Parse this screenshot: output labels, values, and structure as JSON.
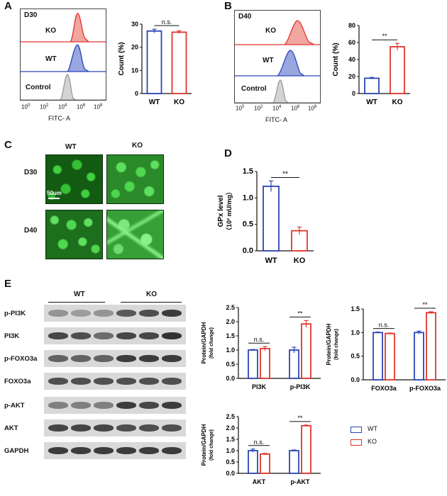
{
  "panels": {
    "A": {
      "letter": "A",
      "day": "D30",
      "tracks": [
        "KO",
        "WT",
        "Control"
      ],
      "x_axis_label": "FITC- A",
      "log_ticks": [
        "10",
        "10",
        "10",
        "10",
        "10"
      ],
      "log_exps": [
        "0",
        "2",
        "4",
        "6",
        "8"
      ]
    },
    "B": {
      "letter": "B",
      "day": "D40",
      "tracks": [
        "KO",
        "WT",
        "Control"
      ],
      "x_axis_label": "FITC- A",
      "log_ticks": [
        "10",
        "10",
        "10",
        "10",
        "10"
      ],
      "log_exps": [
        "0",
        "2",
        "4",
        "6",
        "8"
      ]
    },
    "C": {
      "letter": "C",
      "columns": [
        "WT",
        "KO"
      ],
      "rows": [
        "D30",
        "D40"
      ],
      "scale_bar": "50um"
    },
    "D": {
      "letter": "D"
    },
    "E": {
      "letter": "E",
      "groups": [
        "WT",
        "KO"
      ],
      "blots": [
        "p-PI3K",
        "PI3K",
        "p-FOXO3a",
        "FOXO3a",
        "p-AKT",
        "AKT",
        "GAPDH"
      ],
      "legend": [
        "WT",
        "KO"
      ]
    }
  },
  "colors": {
    "wt": "#2a46b5",
    "ko": "#e0352b",
    "wt_fill": "#9aa6e0",
    "ko_fill": "#f1a6a0",
    "control": "#999999",
    "cell_green": "#2fa52f"
  },
  "chart_data": [
    {
      "id": "A-bar",
      "type": "bar",
      "categories": [
        "WT",
        "KO"
      ],
      "values": [
        27,
        26.5
      ],
      "errors": [
        0.8,
        0.6
      ],
      "ylabel": "Count (%)",
      "ylim": [
        0,
        30
      ],
      "yticks": [
        "0",
        "10",
        "20",
        "30"
      ],
      "significance": "n.s."
    },
    {
      "id": "B-bar",
      "type": "bar",
      "categories": [
        "WT",
        "KO"
      ],
      "values": [
        18,
        55
      ],
      "errors": [
        1,
        4
      ],
      "ylabel": "Count (%)",
      "ylim": [
        0,
        80
      ],
      "yticks": [
        "0",
        "20",
        "40",
        "60",
        "80"
      ],
      "significance": "**"
    },
    {
      "id": "D-bar",
      "type": "bar",
      "categories": [
        "WT",
        "KO"
      ],
      "values": [
        1.22,
        0.38
      ],
      "errors": [
        0.1,
        0.07
      ],
      "ylabel": "GPx level",
      "ylabel2": "（10² mU/mg）",
      "ylim": [
        0,
        1.5
      ],
      "yticks": [
        "0.0",
        "0.5",
        "1.0",
        "1.5"
      ],
      "significance": "**"
    },
    {
      "id": "E-pi3k",
      "type": "bar",
      "categories": [
        "PI3K",
        "p-PI3K"
      ],
      "series": [
        {
          "name": "WT",
          "values": [
            1.0,
            1.0
          ],
          "errors": [
            0.02,
            0.1
          ]
        },
        {
          "name": "KO",
          "values": [
            1.05,
            1.92
          ],
          "errors": [
            0.07,
            0.12
          ]
        }
      ],
      "ylabel": "Protein/GAPDH",
      "ylabel2": "(fold change)",
      "ylim": [
        0,
        2.5
      ],
      "yticks": [
        "0.0",
        "0.5",
        "1.0",
        "1.5",
        "2.0",
        "2.5"
      ],
      "significance": [
        "n.s.",
        "**"
      ]
    },
    {
      "id": "E-foxo3a",
      "type": "bar",
      "categories": [
        "FOXO3a",
        "p-FOXO3a"
      ],
      "series": [
        {
          "name": "WT",
          "values": [
            1.0,
            1.0
          ],
          "errors": [
            0.01,
            0.03
          ]
        },
        {
          "name": "KO",
          "values": [
            0.98,
            1.42
          ],
          "errors": [
            0.01,
            0.02
          ]
        }
      ],
      "ylabel": "Protein/GAPDH",
      "ylabel2": "(fold change)",
      "ylim": [
        0,
        1.5
      ],
      "yticks": [
        "0.0",
        "0.5",
        "1.0",
        "1.5"
      ],
      "significance": [
        "n.s.",
        "**"
      ]
    },
    {
      "id": "E-akt",
      "type": "bar",
      "categories": [
        "AKT",
        "p-AKT"
      ],
      "series": [
        {
          "name": "WT",
          "values": [
            1.0,
            1.0
          ],
          "errors": [
            0.07,
            0.03
          ]
        },
        {
          "name": "KO",
          "values": [
            0.85,
            2.1
          ],
          "errors": [
            0.03,
            0.03
          ]
        }
      ],
      "ylabel": "Protein/GAPDH",
      "ylabel2": "(fold change)",
      "ylim": [
        0,
        2.5
      ],
      "yticks": [
        "0.0",
        "0.5",
        "1.0",
        "1.5",
        "2.0",
        "2.5"
      ],
      "significance": [
        "n.s.",
        "**"
      ]
    }
  ]
}
